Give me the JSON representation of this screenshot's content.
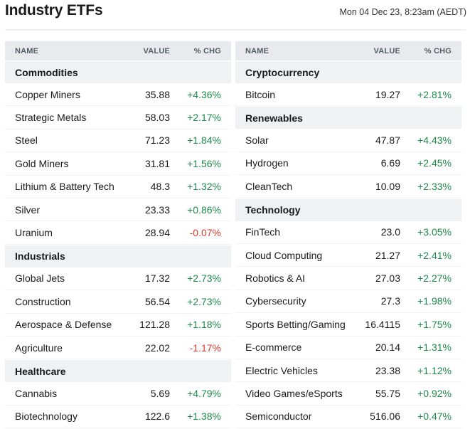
{
  "header": {
    "title": "Industry ETFs",
    "timestamp": "Mon 04 Dec 23, 8:23am (AEDT)"
  },
  "columns": {
    "name": "NAME",
    "value": "VALUE",
    "chg": "% CHG"
  },
  "colors": {
    "positive": "#1f8a4c",
    "negative": "#d63b2f",
    "header_bg": "#e8eaed",
    "group_bg": "#eff1f3"
  },
  "left": {
    "groups": [
      {
        "title": "Commodities",
        "rows": [
          {
            "name": "Copper Miners",
            "value": "35.88",
            "chg": "+4.36%",
            "dir": "pos"
          },
          {
            "name": "Strategic Metals",
            "value": "58.03",
            "chg": "+2.17%",
            "dir": "pos"
          },
          {
            "name": "Steel",
            "value": "71.23",
            "chg": "+1.84%",
            "dir": "pos"
          },
          {
            "name": "Gold Miners",
            "value": "31.81",
            "chg": "+1.56%",
            "dir": "pos"
          },
          {
            "name": "Lithium & Battery Tech",
            "value": "48.3",
            "chg": "+1.32%",
            "dir": "pos"
          },
          {
            "name": "Silver",
            "value": "23.33",
            "chg": "+0.86%",
            "dir": "pos"
          },
          {
            "name": "Uranium",
            "value": "28.94",
            "chg": "-0.07%",
            "dir": "neg"
          }
        ]
      },
      {
        "title": "Industrials",
        "rows": [
          {
            "name": "Global Jets",
            "value": "17.32",
            "chg": "+2.73%",
            "dir": "pos"
          },
          {
            "name": "Construction",
            "value": "56.54",
            "chg": "+2.73%",
            "dir": "pos"
          },
          {
            "name": "Aerospace & Defense",
            "value": "121.28",
            "chg": "+1.18%",
            "dir": "pos"
          },
          {
            "name": "Agriculture",
            "value": "22.02",
            "chg": "-1.17%",
            "dir": "neg"
          }
        ]
      },
      {
        "title": "Healthcare",
        "rows": [
          {
            "name": "Cannabis",
            "value": "5.69",
            "chg": "+4.79%",
            "dir": "pos"
          },
          {
            "name": "Biotechnology",
            "value": "122.6",
            "chg": "+1.38%",
            "dir": "pos"
          }
        ]
      }
    ]
  },
  "right": {
    "groups": [
      {
        "title": "Cryptocurrency",
        "rows": [
          {
            "name": "Bitcoin",
            "value": "19.27",
            "chg": "+2.81%",
            "dir": "pos"
          }
        ]
      },
      {
        "title": "Renewables",
        "rows": [
          {
            "name": "Solar",
            "value": "47.87",
            "chg": "+4.43%",
            "dir": "pos"
          },
          {
            "name": "Hydrogen",
            "value": "6.69",
            "chg": "+2.45%",
            "dir": "pos"
          },
          {
            "name": "CleanTech",
            "value": "10.09",
            "chg": "+2.33%",
            "dir": "pos"
          }
        ]
      },
      {
        "title": "Technology",
        "rows": [
          {
            "name": "FinTech",
            "value": "23.0",
            "chg": "+3.05%",
            "dir": "pos"
          },
          {
            "name": "Cloud Computing",
            "value": "21.27",
            "chg": "+2.41%",
            "dir": "pos"
          },
          {
            "name": "Robotics & AI",
            "value": "27.03",
            "chg": "+2.27%",
            "dir": "pos"
          },
          {
            "name": "Cybersecurity",
            "value": "27.3",
            "chg": "+1.98%",
            "dir": "pos"
          },
          {
            "name": "Sports Betting/Gaming",
            "value": "16.4115",
            "chg": "+1.75%",
            "dir": "pos"
          },
          {
            "name": "E-commerce",
            "value": "20.14",
            "chg": "+1.31%",
            "dir": "pos"
          },
          {
            "name": "Electric Vehicles",
            "value": "23.38",
            "chg": "+1.12%",
            "dir": "pos"
          },
          {
            "name": "Video Games/eSports",
            "value": "55.75",
            "chg": "+0.92%",
            "dir": "pos"
          },
          {
            "name": "Semiconductor",
            "value": "516.06",
            "chg": "+0.47%",
            "dir": "pos"
          }
        ]
      }
    ]
  }
}
